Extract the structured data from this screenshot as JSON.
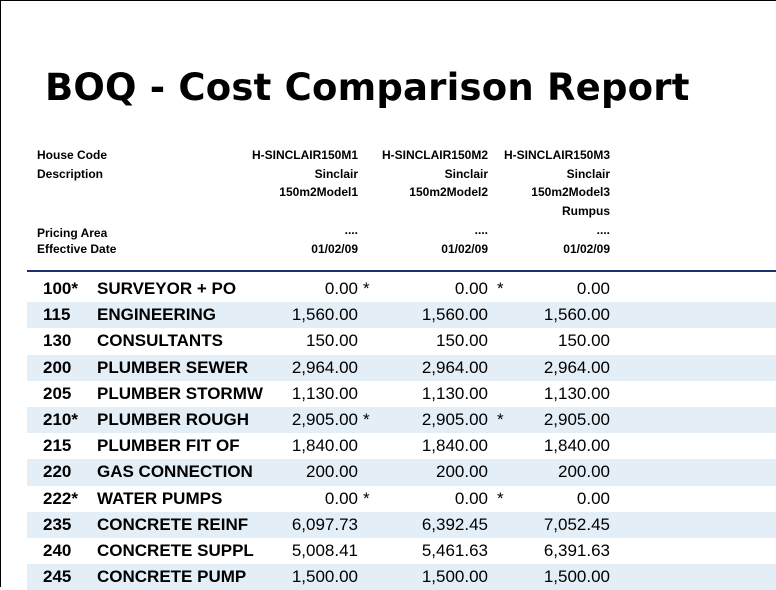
{
  "report": {
    "title": "BOQ - Cost Comparison Report"
  },
  "header": {
    "house_code_label": "House Code",
    "description_label": "Description",
    "pricing_area_label": "Pricing Area",
    "effective_date_label": "Effective Date",
    "columns": [
      {
        "house_code": "H-SINCLAIR150M1",
        "description_line1": "Sinclair",
        "description_line2": "150m2Model1",
        "description_line3": "",
        "pricing_area": "....",
        "effective_date": "01/02/09"
      },
      {
        "house_code": "H-SINCLAIR150M2",
        "description_line1": "Sinclair",
        "description_line2": "150m2Model2",
        "description_line3": "",
        "pricing_area": "....",
        "effective_date": "01/02/09"
      },
      {
        "house_code": "H-SINCLAIR150M3",
        "description_line1": "Sinclair",
        "description_line2": "150m2Model3",
        "description_line3": "Rumpus",
        "pricing_area": "....",
        "effective_date": "01/02/09"
      }
    ]
  },
  "rows": [
    {
      "code": "100*",
      "desc": "SURVEYOR + PO",
      "v1": "0.00",
      "m1": "*",
      "v2": "0.00",
      "m2": "*",
      "v3": "0.00"
    },
    {
      "code": "115",
      "desc": "ENGINEERING",
      "v1": "1,560.00",
      "m1": "",
      "v2": "1,560.00",
      "m2": "",
      "v3": "1,560.00"
    },
    {
      "code": "130",
      "desc": "CONSULTANTS",
      "v1": "150.00",
      "m1": "",
      "v2": "150.00",
      "m2": "",
      "v3": "150.00"
    },
    {
      "code": "200",
      "desc": "PLUMBER SEWER",
      "v1": "2,964.00",
      "m1": "",
      "v2": "2,964.00",
      "m2": "",
      "v3": "2,964.00"
    },
    {
      "code": "205",
      "desc": "PLUMBER STORMW",
      "v1": "1,130.00",
      "m1": "",
      "v2": "1,130.00",
      "m2": "",
      "v3": "1,130.00"
    },
    {
      "code": "210*",
      "desc": "PLUMBER ROUGH",
      "v1": "2,905.00",
      "m1": "*",
      "v2": "2,905.00",
      "m2": "*",
      "v3": "2,905.00"
    },
    {
      "code": "215",
      "desc": "PLUMBER FIT OF",
      "v1": "1,840.00",
      "m1": "",
      "v2": "1,840.00",
      "m2": "",
      "v3": "1,840.00"
    },
    {
      "code": "220",
      "desc": "GAS CONNECTION",
      "v1": "200.00",
      "m1": "",
      "v2": "200.00",
      "m2": "",
      "v3": "200.00"
    },
    {
      "code": "222*",
      "desc": "WATER PUMPS",
      "v1": "0.00",
      "m1": "*",
      "v2": "0.00",
      "m2": "*",
      "v3": "0.00"
    },
    {
      "code": "235",
      "desc": "CONCRETE REINF",
      "v1": "6,097.73",
      "m1": "",
      "v2": "6,392.45",
      "m2": "",
      "v3": "7,052.45"
    },
    {
      "code": "240",
      "desc": "CONCRETE SUPPL",
      "v1": "5,008.41",
      "m1": "",
      "v2": "5,461.63",
      "m2": "",
      "v3": "6,391.63"
    },
    {
      "code": "245",
      "desc": "CONCRETE PUMP",
      "v1": "1,500.00",
      "m1": "",
      "v2": "1,500.00",
      "m2": "",
      "v3": "1,500.00"
    }
  ]
}
